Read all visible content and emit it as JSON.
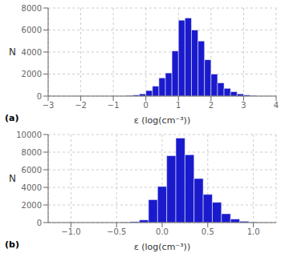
{
  "chart_data": [
    {
      "type": "histogram",
      "bins": [
        -0.6,
        -0.4,
        -0.2,
        0,
        0.2,
        0.4,
        0.6,
        0.8,
        1,
        1.2,
        1.4,
        1.6,
        1.8,
        2,
        2.2,
        2.4,
        2.6,
        2.8,
        3,
        3.2,
        3.4,
        3.6
      ],
      "values": [
        50,
        100,
        200,
        500,
        900,
        1650,
        2100,
        4100,
        6900,
        7100,
        6000,
        5000,
        3300,
        2000,
        1200,
        700,
        400,
        200,
        100,
        50,
        10
      ],
      "color": "#1a1acd",
      "xlim": [
        -3,
        4
      ],
      "ylim": [
        0,
        8000
      ],
      "xticks": [
        {
          "value": -3,
          "label": "−3"
        },
        {
          "value": -2,
          "label": "−2"
        },
        {
          "value": -1,
          "label": "−1"
        },
        0,
        1,
        2,
        3,
        4
      ],
      "yticks": [
        0,
        2000,
        4000,
        6000,
        8000
      ],
      "xlabel": "ε (log(cm⁻³))",
      "ylabel": "N",
      "annotation": "(a)",
      "grid": true
    },
    {
      "type": "histogram",
      "bins": [
        -0.45,
        -0.35,
        -0.25,
        -0.15,
        -0.05,
        0.05,
        0.15,
        0.25,
        0.35,
        0.45,
        0.55,
        0.65,
        0.75,
        0.85,
        0.95,
        1.05,
        1.15
      ],
      "values": [
        50,
        100,
        300,
        2600,
        4100,
        7600,
        9600,
        7700,
        5000,
        3200,
        2300,
        1000,
        400,
        150,
        50,
        10
      ],
      "color": "#1a1acd",
      "xlim": [
        -1.25,
        1.25
      ],
      "ylim": [
        0,
        10000
      ],
      "xticks": [
        {
          "value": -1,
          "label": "−1.0"
        },
        {
          "value": -0.5,
          "label": "−0.5"
        },
        {
          "value": 0,
          "label": "0.0"
        },
        {
          "value": 0.5,
          "label": "0.5"
        },
        {
          "value": 1,
          "label": "1.0"
        }
      ],
      "yticks": [
        0,
        2000,
        4000,
        6000,
        8000,
        10000
      ],
      "xlabel": "ε (log(cm⁻³))",
      "ylabel": "N",
      "annotation": "(b)",
      "grid": true
    }
  ]
}
